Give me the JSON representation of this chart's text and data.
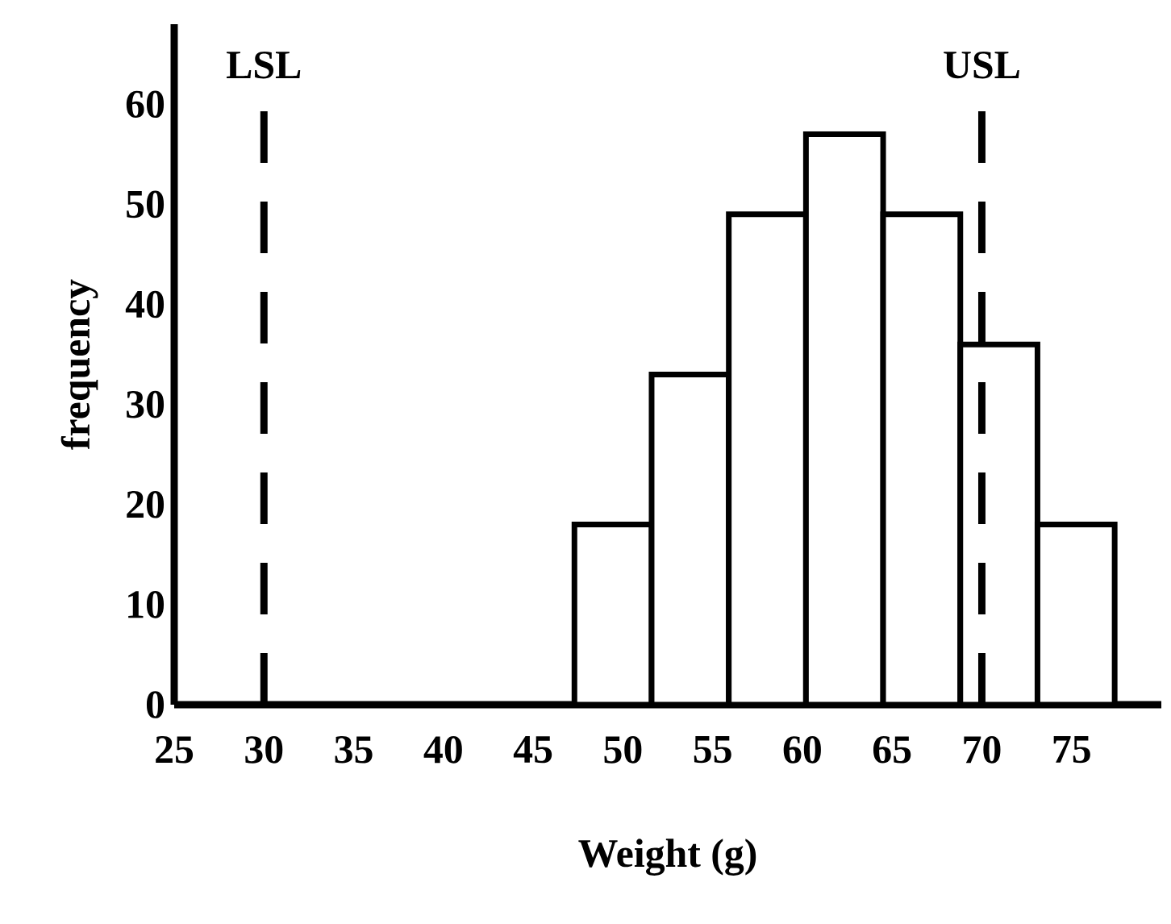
{
  "chart_data": {
    "type": "histogram",
    "xlabel": "Weight (g)",
    "ylabel": "frequency",
    "bins": [
      47.3,
      51.6,
      55.9,
      60.2,
      64.5,
      68.8,
      73.1,
      77.4
    ],
    "values": [
      18,
      33,
      49,
      57,
      49,
      36,
      18
    ],
    "color": "#000000",
    "xlim": [
      25,
      80
    ],
    "xticks": [
      25,
      30,
      35,
      40,
      45,
      50,
      55,
      60,
      65,
      70,
      75
    ],
    "ylim": [
      0,
      68
    ],
    "yticks": [
      0,
      10,
      20,
      30,
      40,
      50,
      60
    ],
    "grid": false,
    "ref_lines": [
      {
        "axis": "x",
        "value": 30,
        "label": "LSL",
        "color": "#000000",
        "line_style": "dashed"
      },
      {
        "axis": "x",
        "value": 70,
        "label": "USL",
        "color": "#000000",
        "line_style": "dashed"
      }
    ]
  }
}
